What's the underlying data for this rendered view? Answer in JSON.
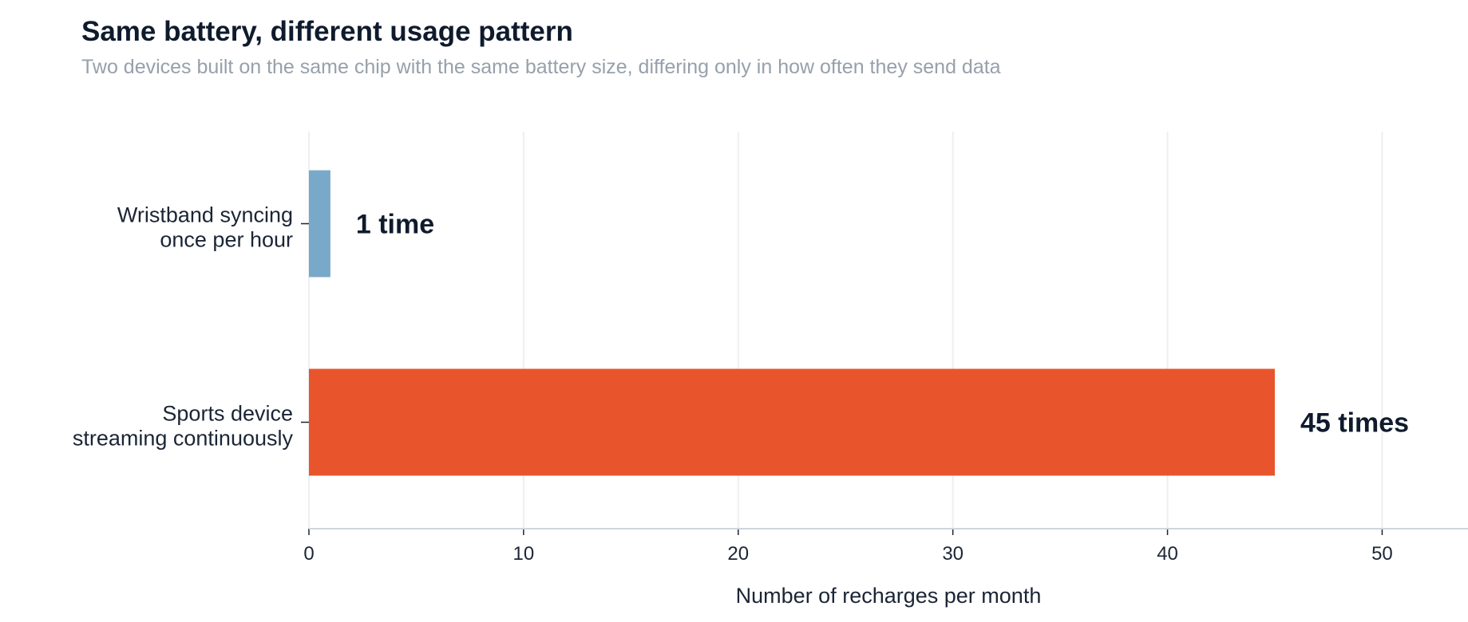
{
  "chart_data": {
    "type": "bar",
    "orientation": "horizontal",
    "title": "Same battery, different usage pattern",
    "subtitle": "Two devices built on the same chip with the same battery size, differing only in how often they send data",
    "xlabel": "Number of recharges per month",
    "ylabel": "",
    "xlim": [
      0,
      54
    ],
    "xticks": [
      0,
      10,
      20,
      30,
      40,
      50
    ],
    "grid": "vertical",
    "categories": [
      [
        "Wristband syncing",
        "once per hour"
      ],
      [
        "Sports device",
        "streaming continuously"
      ]
    ],
    "values": [
      1,
      45
    ],
    "data_labels": [
      "1 time",
      "45 times"
    ],
    "colors": [
      "#79a9c9",
      "#e8552d"
    ]
  },
  "colors": {
    "grid": "#eceff2",
    "axis": "#cdd6de",
    "tick": "#1b2535"
  }
}
